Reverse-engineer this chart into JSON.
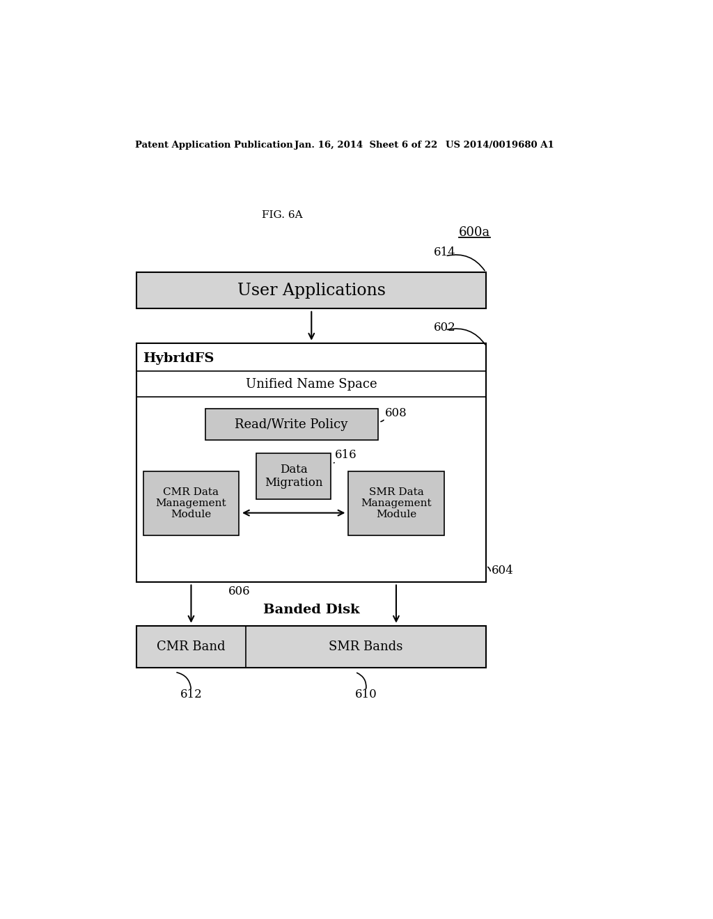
{
  "bg_color": "#ffffff",
  "header_text1": "Patent Application Publication",
  "header_text2": "Jan. 16, 2014  Sheet 6 of 22",
  "header_text3": "US 2014/0019680 A1",
  "fig_label": "FIG. 6A",
  "ref_600a": "600a",
  "ref_614": "614",
  "ref_602": "602",
  "ref_608": "608",
  "ref_616": "616",
  "ref_606": "606",
  "ref_604": "604",
  "ref_612": "612",
  "ref_610": "610",
  "box_fill": "#d4d4d4",
  "box_edge": "#000000",
  "white_fill": "#ffffff",
  "inner_box_fill": "#c8c8c8",
  "lw_outer": 1.5,
  "lw_inner": 1.2
}
